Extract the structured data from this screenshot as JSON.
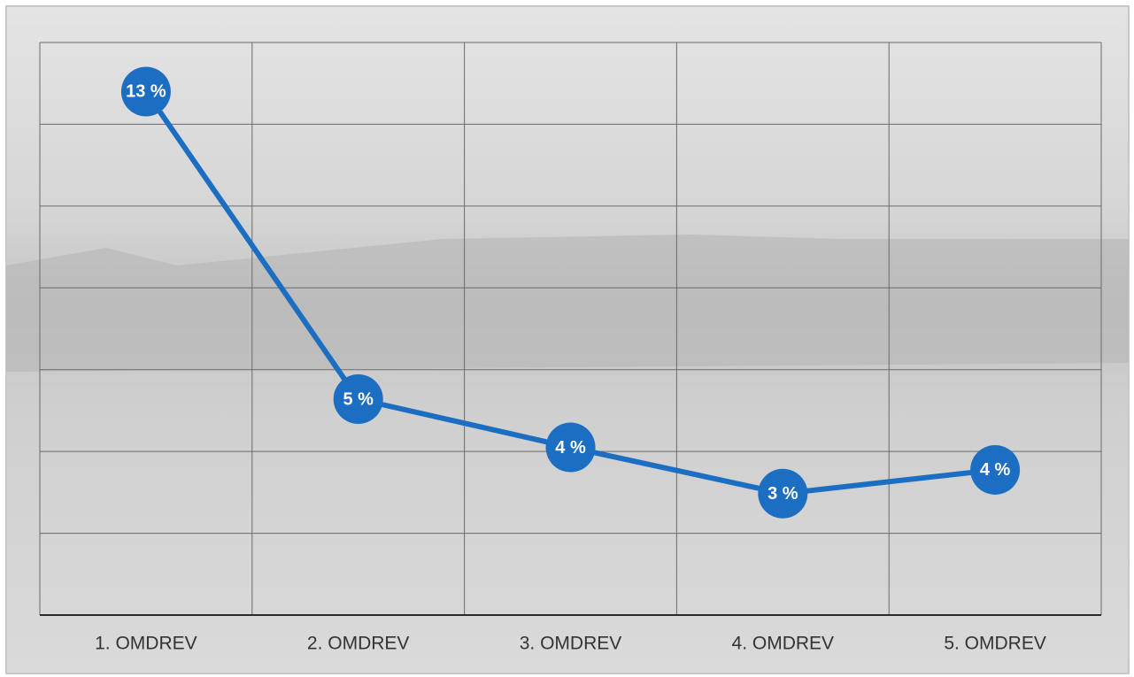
{
  "chart_data": {
    "type": "line",
    "categories": [
      "1. OMDREV",
      "2. OMDREV",
      "3. OMDREV",
      "4. OMDREV",
      "5. OMDREV"
    ],
    "series": [
      {
        "color": "#1b6ec2",
        "values": [
          12.8,
          5.28,
          4.1,
          2.97,
          3.55
        ],
        "value_labels": [
          "13 %",
          "5 %",
          "4 %",
          "3 %",
          "4 %"
        ]
      }
    ],
    "ylim": [
      0,
      14
    ],
    "yticks": [
      0,
      2,
      4,
      6,
      8,
      10,
      12,
      14
    ],
    "grid": true
  }
}
